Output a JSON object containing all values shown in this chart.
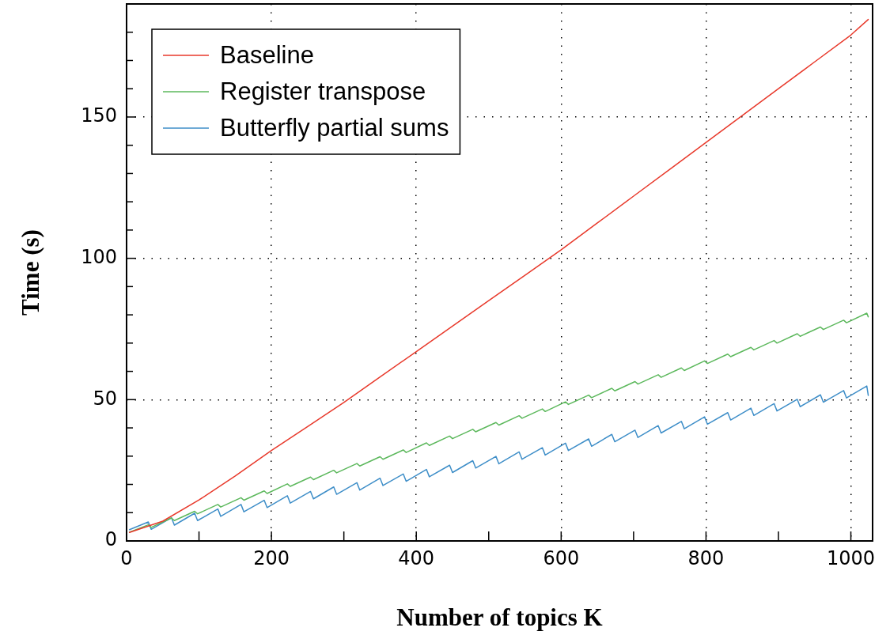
{
  "chart_data": {
    "type": "line",
    "xlabel": "Number of topics K",
    "ylabel": "Time (s)",
    "xlim": [
      0,
      1030
    ],
    "ylim": [
      0,
      190
    ],
    "xticks": [
      0,
      {
        "value": 100,
        "label": null
      },
      200,
      {
        "value": 300,
        "label": null
      },
      400,
      {
        "value": 500,
        "label": null
      },
      600,
      {
        "value": 700,
        "label": null
      },
      800,
      {
        "value": 900,
        "label": null
      },
      1000
    ],
    "yticks": [
      0,
      {
        "value": 10,
        "label": null
      },
      {
        "value": 20,
        "label": null
      },
      {
        "value": 30,
        "label": null
      },
      {
        "value": 40,
        "label": null
      },
      50,
      {
        "value": 60,
        "label": null
      },
      {
        "value": 70,
        "label": null
      },
      {
        "value": 80,
        "label": null
      },
      {
        "value": 90,
        "label": null
      },
      100,
      {
        "value": 110,
        "label": null
      },
      {
        "value": 120,
        "label": null
      },
      {
        "value": 130,
        "label": null
      },
      {
        "value": 140,
        "label": null
      },
      150,
      {
        "value": 160,
        "label": null
      },
      {
        "value": 170,
        "label": null
      },
      {
        "value": 180,
        "label": null
      }
    ],
    "grid": true,
    "legend": "top left",
    "marker": "none",
    "line_style": "solid",
    "series": [
      {
        "name": "Baseline",
        "color": "#e8392b",
        "x": [
          4,
          50,
          100,
          150,
          200,
          250,
          300,
          350,
          400,
          450,
          500,
          550,
          600,
          650,
          700,
          750,
          800,
          850,
          900,
          950,
          1000,
          1024
        ],
        "values": [
          3,
          7,
          14.5,
          23,
          32,
          40.5,
          49,
          58,
          67,
          76,
          85,
          94,
          103,
          112.5,
          122,
          131.5,
          141,
          150.5,
          160,
          169.5,
          179,
          184.5
        ]
      },
      {
        "name": "Register transpose",
        "color": "#5cb85c",
        "x": [
          4,
          30,
          34,
          62,
          66,
          94,
          98,
          126,
          130,
          158,
          162,
          190,
          194,
          222,
          226,
          254,
          258,
          286,
          290,
          318,
          322,
          350,
          354,
          382,
          386,
          414,
          418,
          446,
          450,
          478,
          482,
          510,
          514,
          542,
          546,
          574,
          578,
          606,
          610,
          638,
          642,
          670,
          674,
          702,
          706,
          734,
          738,
          766,
          770,
          798,
          802,
          830,
          834,
          862,
          866,
          894,
          898,
          926,
          930,
          958,
          962,
          990,
          994,
          1022,
          1024
        ],
        "values": [
          3.1,
          5.7,
          4.8,
          8.1,
          7.2,
          10.5,
          9.6,
          12.9,
          12.0,
          15.3,
          14.4,
          17.7,
          16.8,
          20.2,
          19.3,
          22.6,
          21.7,
          25.0,
          24.1,
          27.4,
          26.5,
          29.8,
          28.9,
          32.2,
          31.3,
          34.7,
          33.8,
          37.1,
          36.2,
          39.5,
          38.6,
          41.9,
          41.0,
          44.3,
          43.4,
          46.7,
          45.8,
          49.2,
          48.3,
          51.6,
          50.7,
          54.0,
          53.1,
          56.4,
          55.5,
          58.8,
          57.9,
          61.2,
          60.3,
          63.7,
          62.8,
          66.1,
          65.2,
          68.5,
          67.6,
          70.9,
          70.0,
          73.3,
          72.4,
          75.7,
          74.8,
          78.1,
          77.2,
          80.6,
          79.3
        ]
      },
      {
        "name": "Butterfly partial sums",
        "color": "#3e8ec8",
        "x": [
          4,
          30,
          34,
          62,
          66,
          94,
          98,
          126,
          130,
          158,
          162,
          190,
          194,
          222,
          226,
          254,
          258,
          286,
          290,
          318,
          322,
          350,
          354,
          382,
          386,
          414,
          418,
          446,
          450,
          478,
          482,
          510,
          514,
          542,
          546,
          574,
          578,
          606,
          610,
          638,
          642,
          670,
          674,
          702,
          706,
          734,
          738,
          766,
          770,
          798,
          802,
          830,
          834,
          862,
          866,
          894,
          898,
          926,
          930,
          958,
          962,
          990,
          994,
          1022,
          1024
        ],
        "values": [
          4.0,
          6.7,
          4.1,
          8.2,
          5.6,
          9.8,
          7.2,
          11.3,
          8.7,
          12.9,
          10.3,
          14.4,
          11.8,
          16.0,
          13.4,
          17.5,
          14.9,
          19.1,
          16.5,
          20.6,
          18.0,
          22.2,
          19.6,
          23.7,
          21.1,
          25.3,
          22.7,
          26.8,
          24.2,
          28.4,
          25.8,
          29.9,
          27.3,
          31.5,
          28.9,
          33.0,
          30.4,
          34.6,
          32.0,
          36.1,
          33.5,
          37.7,
          35.1,
          39.2,
          36.6,
          40.8,
          38.2,
          42.3,
          39.7,
          43.9,
          41.3,
          45.4,
          42.8,
          47.0,
          44.4,
          48.6,
          46.0,
          50.1,
          47.5,
          51.7,
          49.1,
          53.2,
          50.6,
          54.8,
          51.5
        ]
      }
    ]
  }
}
